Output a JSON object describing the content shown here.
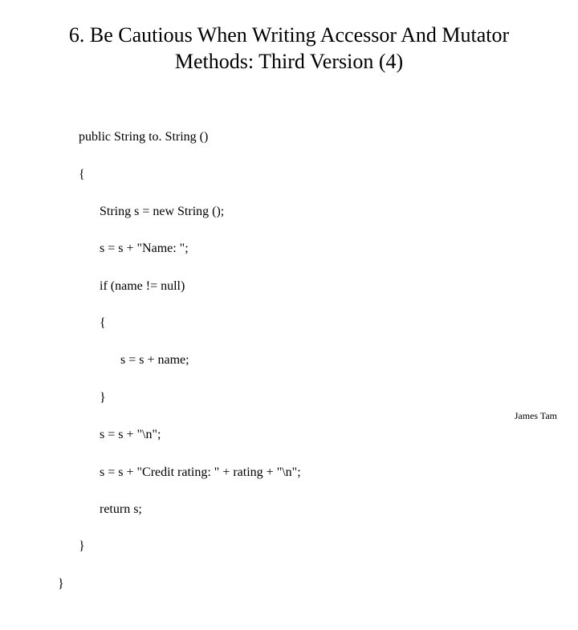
{
  "slide": {
    "title_line1": "6. Be Cautious When Writing Accessor And Mutator",
    "title_line2": "Methods: Third Version (4)",
    "footer": "James Tam",
    "title_fontsize": 26,
    "code_fontsize": 16,
    "footer_fontsize": 12,
    "background_color": "#ffffff",
    "text_color": "#000000"
  },
  "code": {
    "lines": [
      {
        "text": "public String to. String ()",
        "indent": 0
      },
      {
        "text": "{",
        "indent": 0
      },
      {
        "text": "String s = new String ();",
        "indent": 1
      },
      {
        "text": "s = s + \"Name: \";",
        "indent": 1
      },
      {
        "text": "if (name != null)",
        "indent": 1
      },
      {
        "text": "{",
        "indent": 1
      },
      {
        "text": "s = s + name;",
        "indent": 2
      },
      {
        "text": "}",
        "indent": 1
      },
      {
        "text": "s = s + \"\\n\";",
        "indent": 1
      },
      {
        "text": "s = s + \"Credit rating: \" + rating + \"\\n\";",
        "indent": 1
      },
      {
        "text": "return s;",
        "indent": 1
      },
      {
        "text": "}",
        "indent": 0
      }
    ],
    "closing_brace": "}"
  }
}
